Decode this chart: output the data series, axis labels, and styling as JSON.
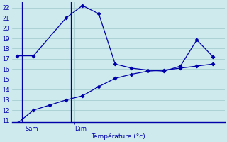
{
  "line1_x": [
    0,
    1,
    3,
    4,
    5,
    6,
    7,
    8,
    9,
    10,
    11,
    12
  ],
  "line1_y": [
    17.3,
    17.3,
    21.0,
    22.2,
    21.4,
    16.5,
    16.1,
    15.9,
    15.8,
    16.3,
    18.85,
    17.2
  ],
  "line2_x": [
    0,
    1,
    2,
    3,
    4,
    5,
    6,
    7,
    8,
    9,
    10,
    11,
    12
  ],
  "line2_y": [
    10.7,
    12.0,
    12.5,
    13.0,
    13.4,
    14.3,
    15.1,
    15.5,
    15.8,
    15.9,
    16.1,
    16.3,
    16.5
  ],
  "ylim_min": 10.8,
  "ylim_max": 22.5,
  "yticks": [
    11,
    12,
    13,
    14,
    15,
    16,
    17,
    18,
    19,
    20,
    21,
    22
  ],
  "bg_color": "#ceeaec",
  "grid_color": "#a0c8cc",
  "line_color": "#0000aa",
  "xlabel": "Température (°c)",
  "sam_x": 0.3,
  "dim_x": 3.3,
  "vline_sam": 0.3,
  "vline_dim": 3.3,
  "xlim_min": -0.3,
  "xlim_max": 12.7
}
